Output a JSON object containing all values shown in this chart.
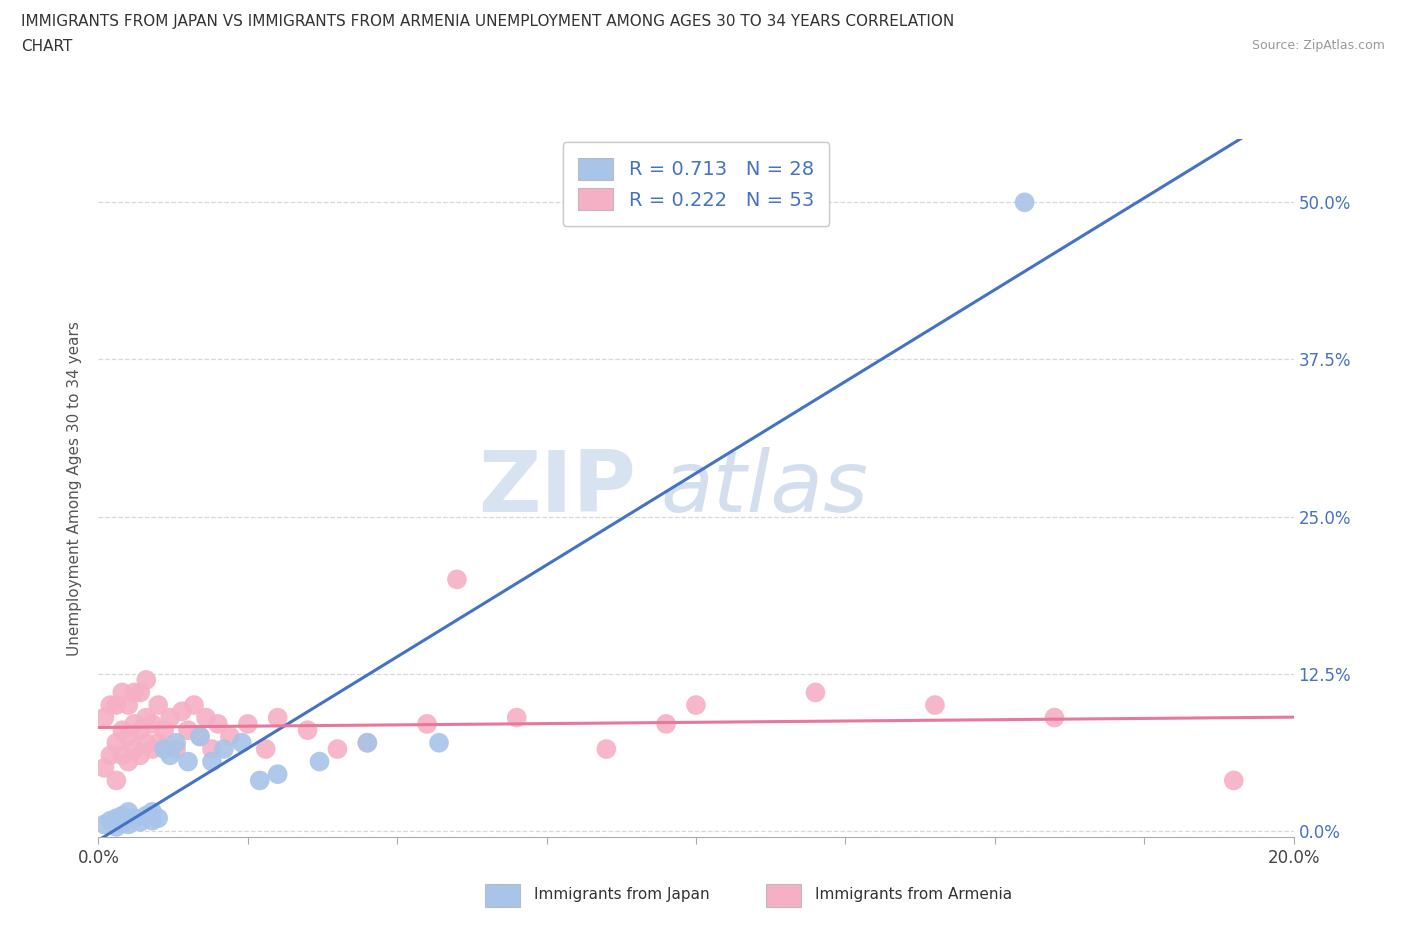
{
  "title_line1": "IMMIGRANTS FROM JAPAN VS IMMIGRANTS FROM ARMENIA UNEMPLOYMENT AMONG AGES 30 TO 34 YEARS CORRELATION",
  "title_line2": "CHART",
  "source": "Source: ZipAtlas.com",
  "ylabel": "Unemployment Among Ages 30 to 34 years",
  "xlim": [
    0.0,
    0.2
  ],
  "ylim": [
    -0.005,
    0.55
  ],
  "xticks": [
    0.0,
    0.025,
    0.05,
    0.075,
    0.1,
    0.125,
    0.15,
    0.175,
    0.2
  ],
  "yticks": [
    0.0,
    0.125,
    0.25,
    0.375,
    0.5
  ],
  "ytick_labels": [
    "0.0%",
    "12.5%",
    "25.0%",
    "37.5%",
    "50.0%"
  ],
  "xtick_labels_show": {
    "0.0": "0.0%",
    "0.20": "20.0%"
  },
  "japan_color": "#a8c4e8",
  "armenia_color": "#f5b0c5",
  "japan_line_color": "#4472c4",
  "armenia_line_color": "#e8789a",
  "R_japan": 0.713,
  "N_japan": 28,
  "R_armenia": 0.222,
  "N_armenia": 53,
  "watermark_zip": "ZIP",
  "watermark_atlas": "atlas",
  "background_color": "#ffffff",
  "grid_color": "#d8d8d8",
  "japan_x": [
    0.001,
    0.002,
    0.003,
    0.003,
    0.004,
    0.004,
    0.005,
    0.005,
    0.006,
    0.007,
    0.008,
    0.009,
    0.009,
    0.01,
    0.011,
    0.012,
    0.013,
    0.015,
    0.017,
    0.019,
    0.021,
    0.024,
    0.027,
    0.03,
    0.037,
    0.045,
    0.057,
    0.155
  ],
  "japan_y": [
    0.005,
    0.008,
    0.003,
    0.01,
    0.006,
    0.012,
    0.005,
    0.015,
    0.01,
    0.007,
    0.012,
    0.008,
    0.015,
    0.01,
    0.065,
    0.06,
    0.07,
    0.055,
    0.075,
    0.055,
    0.065,
    0.07,
    0.04,
    0.045,
    0.055,
    0.07,
    0.07,
    0.5
  ],
  "armenia_x": [
    0.001,
    0.001,
    0.002,
    0.002,
    0.003,
    0.003,
    0.003,
    0.004,
    0.004,
    0.004,
    0.005,
    0.005,
    0.005,
    0.006,
    0.006,
    0.006,
    0.007,
    0.007,
    0.007,
    0.008,
    0.008,
    0.008,
    0.009,
    0.009,
    0.01,
    0.01,
    0.011,
    0.012,
    0.013,
    0.014,
    0.015,
    0.016,
    0.017,
    0.018,
    0.019,
    0.02,
    0.022,
    0.025,
    0.028,
    0.03,
    0.035,
    0.04,
    0.045,
    0.055,
    0.06,
    0.07,
    0.085,
    0.095,
    0.1,
    0.12,
    0.14,
    0.16,
    0.19
  ],
  "armenia_y": [
    0.05,
    0.09,
    0.06,
    0.1,
    0.04,
    0.07,
    0.1,
    0.06,
    0.08,
    0.11,
    0.055,
    0.075,
    0.1,
    0.065,
    0.085,
    0.11,
    0.06,
    0.08,
    0.11,
    0.07,
    0.09,
    0.12,
    0.065,
    0.085,
    0.07,
    0.1,
    0.08,
    0.09,
    0.065,
    0.095,
    0.08,
    0.1,
    0.075,
    0.09,
    0.065,
    0.085,
    0.075,
    0.085,
    0.065,
    0.09,
    0.08,
    0.065,
    0.07,
    0.085,
    0.2,
    0.09,
    0.065,
    0.085,
    0.1,
    0.11,
    0.1,
    0.09,
    0.04
  ]
}
